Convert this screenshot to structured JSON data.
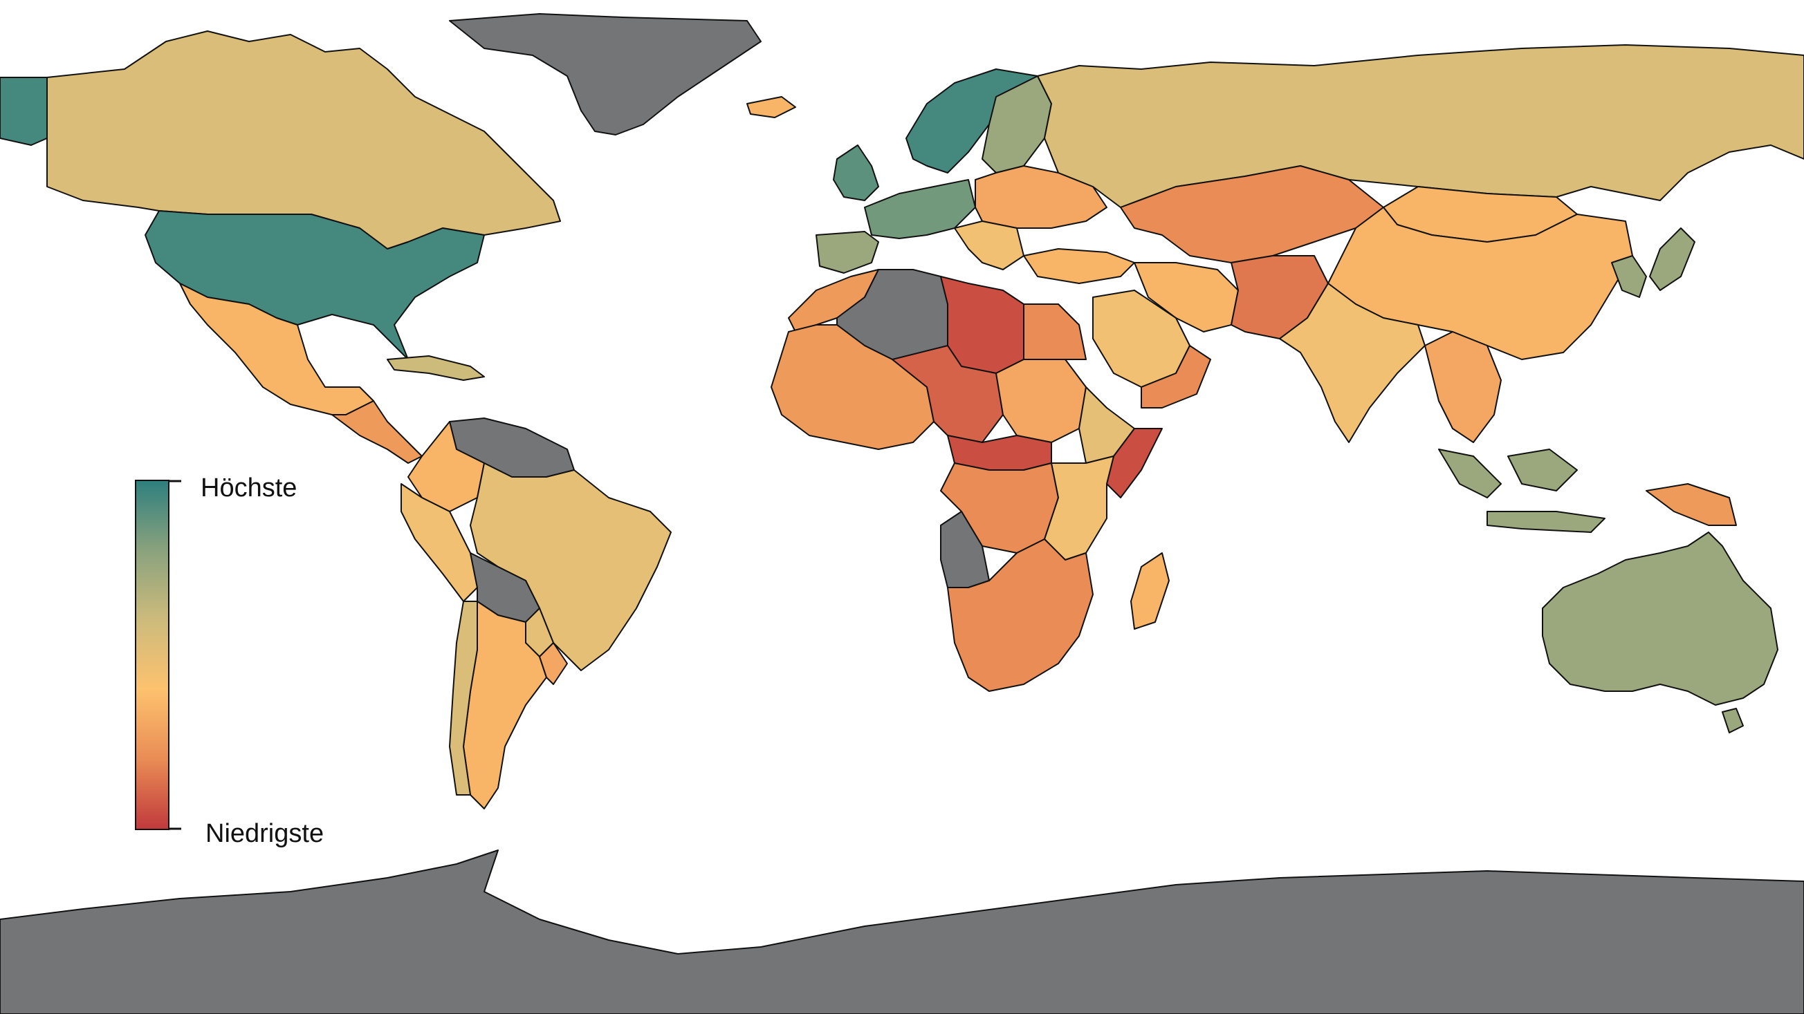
{
  "legend": {
    "high_label": "Höchste",
    "low_label": "Niedrigste",
    "gradient": [
      "#2e7f7e",
      "#8aa27d",
      "#cdbb7c",
      "#fdc26e",
      "#e98c55",
      "#c0393c"
    ]
  },
  "colors": {
    "no_data": "#737577",
    "ocean": "#ffffff",
    "border": "#111111"
  },
  "regions": [
    {
      "name": "alaska",
      "level": 0.95
    },
    {
      "name": "canada",
      "level": 0.55
    },
    {
      "name": "greenland",
      "level": null
    },
    {
      "name": "usa",
      "level": 0.95
    },
    {
      "name": "mexico",
      "level": 0.35
    },
    {
      "name": "central-america",
      "level": 0.25
    },
    {
      "name": "caribbean",
      "level": 0.6
    },
    {
      "name": "guianas-venezuela",
      "level": null
    },
    {
      "name": "colombia",
      "level": 0.35
    },
    {
      "name": "peru-ecuador",
      "level": 0.45
    },
    {
      "name": "brazil",
      "level": 0.5
    },
    {
      "name": "bolivia",
      "level": null
    },
    {
      "name": "paraguay",
      "level": 0.5
    },
    {
      "name": "argentina",
      "level": 0.35
    },
    {
      "name": "chile",
      "level": 0.55
    },
    {
      "name": "uruguay",
      "level": 0.3
    },
    {
      "name": "iceland",
      "level": 0.35
    },
    {
      "name": "scandinavia",
      "level": 0.95
    },
    {
      "name": "finland-baltics",
      "level": 0.75
    },
    {
      "name": "uk-ireland",
      "level": 0.9
    },
    {
      "name": "western-europe",
      "level": 0.85
    },
    {
      "name": "iberia",
      "level": 0.75
    },
    {
      "name": "eastern-europe",
      "level": 0.3
    },
    {
      "name": "balkans",
      "level": 0.45
    },
    {
      "name": "russia",
      "level": 0.55
    },
    {
      "name": "turkey",
      "level": 0.35
    },
    {
      "name": "caucasus-central-asia",
      "level": 0.2
    },
    {
      "name": "iran",
      "level": 0.35
    },
    {
      "name": "afghanistan-pakistan",
      "level": 0.15
    },
    {
      "name": "arabia",
      "level": 0.45
    },
    {
      "name": "yemen-oman",
      "level": 0.2
    },
    {
      "name": "mongolia",
      "level": 0.35
    },
    {
      "name": "china",
      "level": 0.35
    },
    {
      "name": "india",
      "level": 0.45
    },
    {
      "name": "southeast-asia",
      "level": 0.3
    },
    {
      "name": "korea-japan",
      "level": 0.75
    },
    {
      "name": "indonesia-malaysia",
      "level": 0.75
    },
    {
      "name": "papua-new-guinea",
      "level": 0.25
    },
    {
      "name": "australia",
      "level": 0.75
    },
    {
      "name": "new-zealand",
      "level": 0.75
    },
    {
      "name": "north-africa-west",
      "level": 0.25
    },
    {
      "name": "algeria",
      "level": null
    },
    {
      "name": "libya",
      "level": 0.05
    },
    {
      "name": "egypt",
      "level": 0.2
    },
    {
      "name": "west-africa",
      "level": 0.25
    },
    {
      "name": "niger-chad",
      "level": 0.1
    },
    {
      "name": "sudan",
      "level": 0.3
    },
    {
      "name": "horn-of-africa",
      "level": 0.5
    },
    {
      "name": "somalia",
      "level": 0.05
    },
    {
      "name": "central-africa",
      "level": 0.05
    },
    {
      "name": "drc",
      "level": 0.2
    },
    {
      "name": "east-africa",
      "level": 0.45
    },
    {
      "name": "angola",
      "level": null
    },
    {
      "name": "southern-africa",
      "level": 0.2
    },
    {
      "name": "madagascar",
      "level": 0.35
    },
    {
      "name": "antarctica",
      "level": null
    }
  ]
}
